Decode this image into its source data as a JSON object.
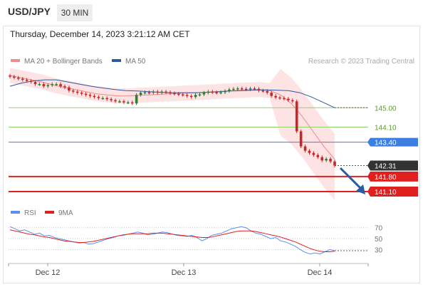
{
  "header": {
    "symbol": "USD/JPY",
    "timeframe": "30 MIN",
    "datetime": "Thursday, December 14, 2023 3:21:12 AM CET"
  },
  "legend": {
    "bb_label": "MA 20 + Bollinger Bands",
    "ma50_label": "MA 50",
    "credit": "Research © 2023 Trading Central",
    "rsi_label": "RSI",
    "rsi_ma_label": "9MA"
  },
  "colors": {
    "bb": "#f08b8b",
    "band": "#fde0e0",
    "ma50": "#2b5aa0",
    "up": "#2e7d32",
    "down": "#c62828",
    "resistance": "#8fd36b",
    "resistance_text": "#5a9e1e",
    "pivot": "#3d7fe0",
    "support": "#e01f1f",
    "current": "#333333",
    "rsi": "#5b8ff0",
    "rsi_ma": "#e02020",
    "arrow": "#2b5aa0"
  },
  "chart_data": {
    "type": "candlestick",
    "x_ticks": [
      "Dec 12",
      "Dec 13",
      "Dec 14"
    ],
    "levels": [
      {
        "label": "145.00",
        "value": 145.0,
        "kind": "resistance"
      },
      {
        "label": "144.10",
        "value": 144.1,
        "kind": "resistance"
      },
      {
        "label": "143.40",
        "value": 143.4,
        "kind": "pivot"
      },
      {
        "label": "142.31",
        "value": 142.31,
        "kind": "current"
      },
      {
        "label": "141.80",
        "value": 141.8,
        "kind": "support"
      },
      {
        "label": "141.10",
        "value": 141.1,
        "kind": "support"
      }
    ],
    "closes": [
      146.45,
      146.4,
      146.35,
      146.3,
      146.25,
      146.2,
      146.1,
      146.1,
      146.0,
      146.05,
      146.1,
      146.1,
      146.0,
      145.95,
      145.8,
      145.75,
      145.7,
      145.65,
      145.6,
      145.55,
      145.5,
      145.45,
      145.45,
      145.4,
      145.35,
      145.3,
      145.3,
      145.25,
      145.25,
      145.2,
      145.6,
      145.7,
      145.72,
      145.7,
      145.75,
      145.7,
      145.75,
      145.72,
      145.68,
      145.65,
      145.62,
      145.6,
      145.55,
      145.5,
      145.6,
      145.62,
      145.7,
      145.75,
      145.72,
      145.7,
      145.72,
      145.78,
      145.85,
      145.88,
      145.9,
      145.88,
      145.85,
      145.9,
      145.88,
      145.8,
      145.78,
      145.7,
      145.55,
      145.48,
      145.45,
      145.42,
      145.35,
      145.3,
      143.9,
      143.2,
      143.0,
      142.9,
      142.8,
      142.7,
      142.55,
      142.62,
      142.5,
      142.31
    ],
    "ma20": [
      146.5,
      146.4,
      146.3,
      146.2,
      146.05,
      145.95,
      145.85,
      145.75,
      145.65,
      145.6,
      145.55,
      145.55,
      145.58,
      145.6,
      145.63,
      145.65,
      145.68,
      145.7,
      145.72,
      145.75,
      145.78,
      145.8,
      145.83,
      145.85,
      145.8,
      145.6,
      145.2,
      144.6,
      143.9,
      143.2,
      142.6
    ],
    "ma20_start_index": 0,
    "ma50": [
      146.0,
      146.15,
      146.25,
      146.3,
      146.3,
      146.2,
      146.1,
      146.0,
      145.92,
      145.85,
      145.8,
      145.78,
      145.75,
      145.72,
      145.7,
      145.7,
      145.7,
      145.72,
      145.75,
      145.78,
      145.8,
      145.82,
      145.83,
      145.82,
      145.8,
      145.7,
      145.5,
      145.25,
      145.0
    ],
    "price_range": [
      140.9,
      146.7
    ],
    "rsi": {
      "ticks": [
        70,
        50,
        30
      ],
      "range": [
        15,
        80
      ],
      "rsi": [
        72,
        68,
        64,
        66,
        62,
        58,
        60,
        55,
        56,
        52,
        50,
        48,
        46,
        44,
        42,
        43,
        40,
        41,
        44,
        47,
        50,
        52,
        55,
        56,
        58,
        60,
        62,
        60,
        57,
        58,
        60,
        62,
        61,
        58,
        56,
        55,
        54,
        56,
        52,
        46,
        50,
        56,
        58,
        60,
        64,
        68,
        70,
        72,
        70,
        64,
        60,
        58,
        54,
        50,
        52,
        46,
        44,
        40,
        36,
        30,
        25,
        22,
        24,
        22,
        26,
        30,
        28
      ],
      "ma9": [
        66,
        64,
        62,
        60,
        58,
        57,
        55,
        53,
        52,
        50,
        48,
        46,
        45,
        44,
        43,
        43,
        44,
        45,
        47,
        49,
        51,
        53,
        55,
        57,
        58,
        59,
        59,
        59,
        59,
        60,
        60,
        60,
        59,
        58,
        57,
        56,
        55,
        54,
        53,
        52,
        52,
        53,
        55,
        57,
        59,
        61,
        63,
        64,
        64,
        64,
        63,
        61,
        59,
        57,
        55,
        53,
        50,
        47,
        44,
        40,
        36,
        32,
        29,
        27,
        26,
        26,
        27
      ]
    }
  }
}
